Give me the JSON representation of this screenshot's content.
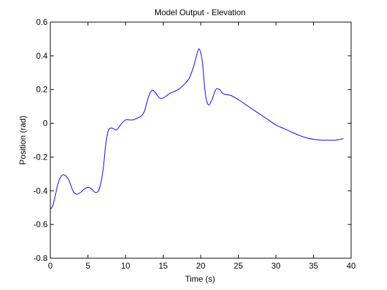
{
  "chart_data": {
    "type": "line",
    "title": "Model Output - Elevation",
    "xlabel": "Time (s)",
    "ylabel": "Position (rad)",
    "xlim": [
      0,
      40
    ],
    "ylim": [
      -0.8,
      0.6
    ],
    "xticks": [
      0,
      5,
      10,
      15,
      20,
      25,
      30,
      35,
      40
    ],
    "xtick_labels": [
      "0",
      "5",
      "10",
      "15",
      "20",
      "25",
      "30",
      "35",
      "40"
    ],
    "yticks": [
      -0.8,
      -0.6,
      -0.4,
      -0.2,
      0,
      0.2,
      0.4,
      0.6
    ],
    "ytick_labels": [
      "-0.8",
      "-0.6",
      "-0.4",
      "-0.2",
      "0",
      "0.2",
      "0.4",
      "0.6"
    ],
    "grid": false,
    "series": [
      {
        "color": "#0000ff",
        "x": [
          0.0,
          0.3,
          0.6,
          1.0,
          1.5,
          2.0,
          2.5,
          3.0,
          3.5,
          4.0,
          4.5,
          5.0,
          5.5,
          6.0,
          6.5,
          7.0,
          7.3,
          7.6,
          7.9,
          8.3,
          8.7,
          9.0,
          9.5,
          10.0,
          10.5,
          11.0,
          11.5,
          12.0,
          12.5,
          13.0,
          13.5,
          14.0,
          14.5,
          15.0,
          15.5,
          16.0,
          17.0,
          18.0,
          18.5,
          19.0,
          19.5,
          19.8,
          20.2,
          20.6,
          21.0,
          21.5,
          22.0,
          22.5,
          23.0,
          24.0,
          25.0,
          26.0,
          27.0,
          28.0,
          29.0,
          30.0,
          31.0,
          32.0,
          33.0,
          34.0,
          35.0,
          36.0,
          37.0,
          38.0,
          39.0
        ],
        "y": [
          -0.51,
          -0.49,
          -0.44,
          -0.36,
          -0.31,
          -0.31,
          -0.34,
          -0.4,
          -0.42,
          -0.41,
          -0.39,
          -0.38,
          -0.39,
          -0.41,
          -0.39,
          -0.28,
          -0.15,
          -0.06,
          -0.03,
          -0.03,
          -0.04,
          -0.03,
          0.0,
          0.02,
          0.02,
          0.02,
          0.03,
          0.04,
          0.07,
          0.15,
          0.195,
          0.18,
          0.15,
          0.15,
          0.165,
          0.18,
          0.2,
          0.24,
          0.27,
          0.33,
          0.41,
          0.44,
          0.37,
          0.18,
          0.11,
          0.14,
          0.2,
          0.2,
          0.175,
          0.165,
          0.14,
          0.11,
          0.08,
          0.05,
          0.02,
          -0.01,
          -0.03,
          -0.05,
          -0.07,
          -0.085,
          -0.095,
          -0.1,
          -0.1,
          -0.1,
          -0.09
        ]
      }
    ]
  }
}
